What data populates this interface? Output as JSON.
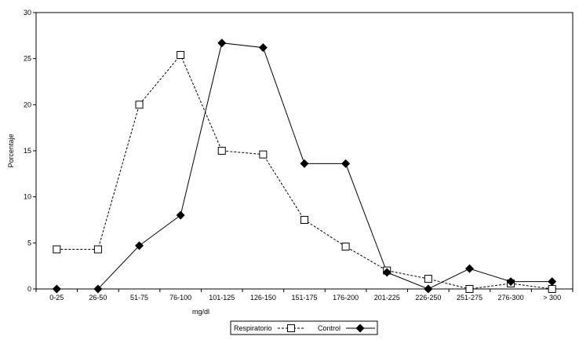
{
  "chart_data": {
    "type": "line",
    "title": "",
    "xlabel": "mg/dl",
    "ylabel": "Porcentaje",
    "ylim": [
      0,
      30
    ],
    "ytick_step": 5,
    "grid": false,
    "legend_position": "bottom",
    "categories": [
      "0-25",
      "26-50",
      "51-75",
      "76-100",
      "101-125",
      "126-150",
      "151-175",
      "176-200",
      "201-225",
      "226-250",
      "251-275",
      "276-300",
      "> 300"
    ],
    "series": [
      {
        "name": "Respiratorio",
        "marker": "open-square",
        "line": "dashed",
        "values": [
          4.3,
          4.3,
          20.0,
          25.4,
          15.0,
          14.6,
          7.5,
          4.6,
          2.0,
          1.1,
          0.0,
          0.6,
          0.0
        ]
      },
      {
        "name": "Control",
        "marker": "filled-diamond",
        "line": "solid",
        "values": [
          0.0,
          0.0,
          4.7,
          8.0,
          26.7,
          26.2,
          13.6,
          13.6,
          1.8,
          0.0,
          2.2,
          0.8,
          0.8
        ]
      }
    ]
  }
}
